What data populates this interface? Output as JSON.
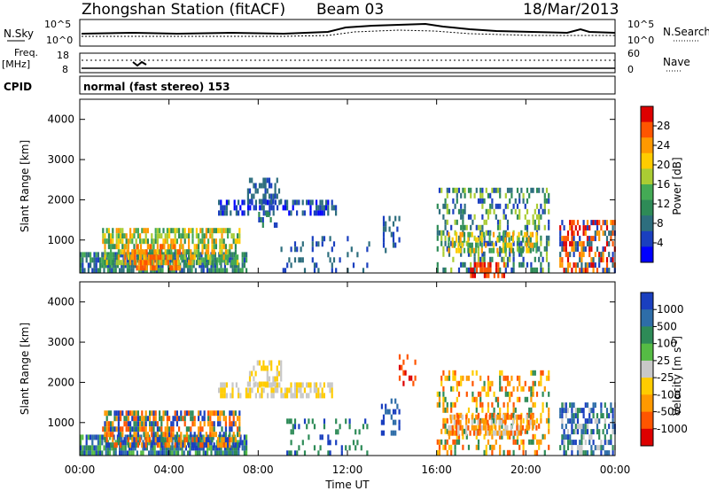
{
  "header": {
    "title": "Zhongshan Station (fitACF)",
    "beam": "Beam 03",
    "date": "18/Mar/2013"
  },
  "params": {
    "nsky_label": "N.Sky",
    "nsearch_label": "N.Search",
    "noise_ticks": [
      "10^5",
      "10^0"
    ],
    "freq_label": "Freq.",
    "freq_unit": "[MHz]",
    "freq_ticks": [
      "18",
      "8"
    ],
    "nave_label": "Nave",
    "nave_ticks": [
      "60",
      "0"
    ],
    "cpid_label": "CPID",
    "mode_text": "normal (fast stereo) 153"
  },
  "chart_data": [
    {
      "type": "heatmap",
      "name": "power",
      "ylabel": "Slant Range [km]",
      "ylim": [
        180,
        4500
      ],
      "yticks": [
        1000,
        2000,
        3000,
        4000
      ],
      "xlim": [
        0,
        24
      ],
      "colorbar": {
        "label": "Power [dB]",
        "ticks": [
          "28",
          "24",
          "20",
          "16",
          "12",
          "8",
          "4"
        ],
        "colors": [
          "#dd0000",
          "#ff5500",
          "#ff9900",
          "#ffcc00",
          "#aacc33",
          "#44aa55",
          "#2e8b57",
          "#2d6e7e",
          "#1a3fbf",
          "#0000ff"
        ]
      },
      "regions": [
        {
          "t0": 0.0,
          "t1": 7.5,
          "r0": 200,
          "r1": 700,
          "density": 0.8,
          "colors": [
            "#1a3fbf",
            "#2d6e7e",
            "#2e8b57",
            "#44aa55"
          ]
        },
        {
          "t0": 1.0,
          "t1": 7.2,
          "r0": 500,
          "r1": 1300,
          "density": 0.65,
          "colors": [
            "#ff9900",
            "#ffcc00",
            "#aacc33",
            "#44aa55",
            "#2e8b57"
          ]
        },
        {
          "t0": 2.0,
          "t1": 4.5,
          "r0": 300,
          "r1": 900,
          "density": 0.4,
          "colors": [
            "#ff5500",
            "#ff9900"
          ]
        },
        {
          "t0": 6.2,
          "t1": 11.5,
          "r0": 1650,
          "r1": 2000,
          "density": 0.55,
          "colors": [
            "#1a3fbf",
            "#2d6e7e",
            "#0000ff"
          ]
        },
        {
          "t0": 7.5,
          "t1": 9.0,
          "r0": 1900,
          "r1": 2550,
          "density": 0.45,
          "colors": [
            "#1a3fbf",
            "#2d6e7e"
          ]
        },
        {
          "t0": 8.0,
          "t1": 9.0,
          "r0": 1400,
          "r1": 1700,
          "density": 0.3,
          "colors": [
            "#2e8b57",
            "#1a3fbf"
          ]
        },
        {
          "t0": 9.0,
          "t1": 13.0,
          "r0": 300,
          "r1": 1100,
          "density": 0.15,
          "colors": [
            "#1a3fbf",
            "#2d6e7e"
          ]
        },
        {
          "t0": 13.5,
          "t1": 14.3,
          "r0": 700,
          "r1": 1600,
          "density": 0.35,
          "colors": [
            "#1a3fbf",
            "#2d6e7e"
          ]
        },
        {
          "t0": 16.0,
          "t1": 21.0,
          "r0": 250,
          "r1": 2300,
          "density": 0.35,
          "colors": [
            "#1a3fbf",
            "#2d6e7e",
            "#2e8b57",
            "#aacc33"
          ]
        },
        {
          "t0": 16.5,
          "t1": 20.5,
          "r0": 700,
          "r1": 1200,
          "density": 0.55,
          "colors": [
            "#ffcc00",
            "#ff9900",
            "#44aa55",
            "#2e8b57"
          ]
        },
        {
          "t0": 17.5,
          "t1": 19.0,
          "r0": 180,
          "r1": 450,
          "density": 0.55,
          "colors": [
            "#dd0000",
            "#ff5500"
          ]
        },
        {
          "t0": 21.5,
          "t1": 24.0,
          "r0": 300,
          "r1": 1500,
          "density": 0.55,
          "colors": [
            "#ff5500",
            "#dd0000",
            "#ff9900",
            "#2d6e7e",
            "#1a3fbf"
          ]
        }
      ]
    },
    {
      "type": "heatmap",
      "name": "velocity",
      "ylabel": "Slant Range [km]",
      "ylim": [
        180,
        4500
      ],
      "yticks": [
        1000,
        2000,
        3000,
        4000
      ],
      "xlim": [
        0,
        24
      ],
      "xlabel": "Time UT",
      "xticks": [
        "00:00",
        "04:00",
        "08:00",
        "12:00",
        "16:00",
        "20:00",
        "00:00"
      ],
      "colorbar": {
        "label": "Velocity [m s^-1]",
        "ticks": [
          "1000",
          "500",
          "100",
          "25",
          "-25",
          "-100",
          "-500",
          "-1000"
        ],
        "colors": [
          "#1a3fbf",
          "#2e6da8",
          "#2e8b57",
          "#55bb44",
          "#c8c8c8",
          "#ffcc00",
          "#ff9900",
          "#ff5500",
          "#dd0000"
        ]
      },
      "regions": [
        {
          "t0": 0.0,
          "t1": 7.5,
          "r0": 200,
          "r1": 700,
          "density": 0.8,
          "colors": [
            "#2e8b57",
            "#1a3fbf",
            "#2e6da8",
            "#55bb44"
          ]
        },
        {
          "t0": 1.0,
          "t1": 7.2,
          "r0": 500,
          "r1": 1300,
          "density": 0.65,
          "colors": [
            "#ff9900",
            "#ff5500",
            "#2e8b57",
            "#1a3fbf"
          ]
        },
        {
          "t0": 6.2,
          "t1": 11.5,
          "r0": 1650,
          "r1": 2000,
          "density": 0.55,
          "colors": [
            "#c8c8c8",
            "#ffcc00"
          ]
        },
        {
          "t0": 7.5,
          "t1": 9.0,
          "r0": 1900,
          "r1": 2550,
          "density": 0.45,
          "colors": [
            "#c8c8c8",
            "#ffcc00"
          ]
        },
        {
          "t0": 9.0,
          "t1": 13.0,
          "r0": 300,
          "r1": 1100,
          "density": 0.15,
          "colors": [
            "#2e8b57",
            "#1a3fbf"
          ]
        },
        {
          "t0": 13.5,
          "t1": 14.3,
          "r0": 700,
          "r1": 1600,
          "density": 0.35,
          "colors": [
            "#1a3fbf",
            "#2e6da8"
          ]
        },
        {
          "t0": 14.3,
          "t1": 15.0,
          "r0": 1800,
          "r1": 2700,
          "density": 0.15,
          "colors": [
            "#dd0000",
            "#ff5500"
          ]
        },
        {
          "t0": 16.0,
          "t1": 21.0,
          "r0": 250,
          "r1": 2300,
          "density": 0.35,
          "colors": [
            "#ff9900",
            "#ff5500",
            "#2e8b57",
            "#ffcc00"
          ]
        },
        {
          "t0": 16.5,
          "t1": 20.5,
          "r0": 700,
          "r1": 1200,
          "density": 0.55,
          "colors": [
            "#ff9900",
            "#ff5500",
            "#c8c8c8"
          ]
        },
        {
          "t0": 21.5,
          "t1": 24.0,
          "r0": 300,
          "r1": 1500,
          "density": 0.55,
          "colors": [
            "#1a3fbf",
            "#2e6da8",
            "#2e8b57",
            "#c8c8c8"
          ]
        }
      ]
    }
  ]
}
